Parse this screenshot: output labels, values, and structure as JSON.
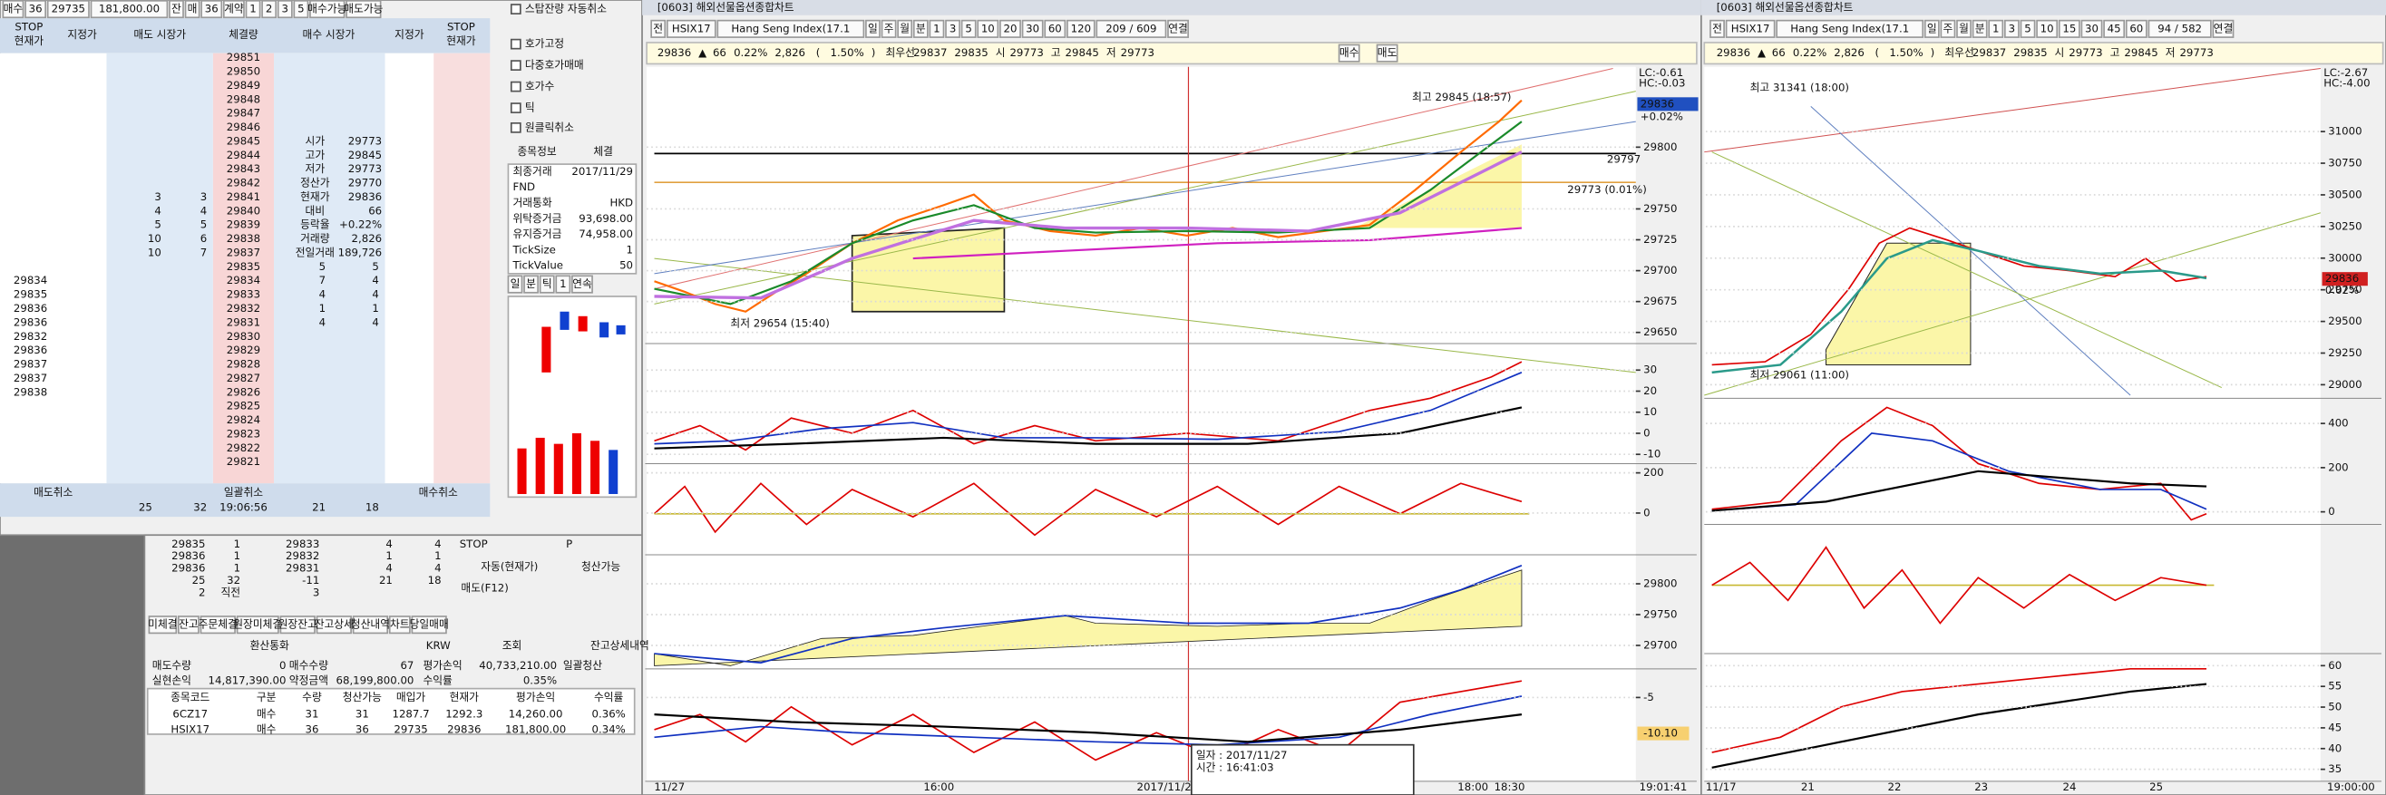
{
  "order_panel": {
    "toolbar": [
      "매수",
      "36",
      "29735",
      "181,800.00",
      "잔",
      "매",
      "36",
      "계약",
      "1",
      "2",
      "3",
      "5",
      "매수가능",
      "매도가능"
    ],
    "headers": [
      [
        "STOP",
        "현재가"
      ],
      [
        "지정가"
      ],
      [
        "매도 시장가"
      ],
      [
        "체결량"
      ],
      [
        "매수 시장가"
      ],
      [
        "지정가"
      ],
      [
        "STOP",
        "현재가"
      ]
    ],
    "prices": [
      29851,
      29850,
      29849,
      29848,
      29847,
      29846,
      29845,
      29844,
      29843,
      29842,
      29841,
      29840,
      29839,
      29838,
      29837,
      29835,
      29834,
      29833,
      29832,
      29831,
      29830,
      29829,
      29828,
      29827,
      29826,
      29825,
      29824,
      29823,
      29822,
      29821
    ],
    "ask_qty": [
      [
        3,
        3
      ],
      [
        4,
        4
      ],
      [
        5,
        5
      ],
      [
        10,
        6
      ],
      [
        10,
        7
      ]
    ],
    "bid_qty": [
      [
        5,
        5
      ],
      [
        7,
        4
      ],
      [
        4,
        4
      ],
      [
        1,
        1
      ],
      [
        4,
        4
      ]
    ],
    "quote": [
      [
        "시가",
        "29773"
      ],
      [
        "고가",
        "29845"
      ],
      [
        "저가",
        "29773"
      ],
      [
        "정산가",
        "29770"
      ],
      [
        "현재가",
        "29836"
      ],
      [
        "대비",
        "66"
      ],
      [
        "등락율",
        "+0.22%"
      ],
      [
        "거래량",
        "2,826"
      ],
      [
        "전일거래",
        "189,726"
      ]
    ],
    "stop_prices": [
      29834,
      29835,
      29836,
      29836,
      29832,
      29836,
      29837,
      29837,
      29838
    ],
    "footer": [
      "매도취소",
      "일괄취소",
      "매수취소"
    ],
    "totals": [
      "25",
      "32",
      "19:06:56",
      "21",
      "18"
    ]
  },
  "settings_panel": {
    "checks": [
      "스탑잔량 자동취소",
      "호가고정",
      "다중호가매매",
      "호가수",
      "틱",
      "원클릭취소"
    ],
    "tabs": [
      "종목정보",
      "체결"
    ],
    "info": [
      [
        "최종거래",
        "2017/11/29"
      ],
      [
        "FND"
      ],
      [
        "거래통화",
        "HKD"
      ],
      [
        "위탁증거금",
        "93,698.00"
      ],
      [
        "유지증거금",
        "74,958.00"
      ],
      [
        "TickSize",
        "1"
      ],
      [
        "TickValue",
        "50"
      ]
    ],
    "period_tabs": [
      "일",
      "분",
      "틱",
      "1",
      "연속"
    ]
  },
  "mini_book": [
    [
      "29835",
      "1",
      "29833",
      "4",
      "4"
    ],
    [
      "29836",
      "1",
      "29832",
      "1",
      "1"
    ],
    [
      "29836",
      "1",
      "29831",
      "4",
      "4"
    ],
    [
      "25",
      "32",
      "-11",
      "21",
      "18"
    ],
    [
      "2",
      "직전",
      "3"
    ]
  ],
  "stop_box": [
    "STOP",
    "P",
    "자동(현재가)",
    "청산가능",
    "매도(F12)"
  ],
  "account": {
    "tabs": [
      "미체결",
      "잔고",
      "주문체결",
      "원장미체결",
      "원장잔고",
      "잔고상세",
      "청산내역",
      "차트",
      "당일매매"
    ],
    "currency": [
      "환산통화",
      "KRW",
      "조회",
      "잔고상세내역"
    ],
    "summary": [
      [
        "매도수량",
        "0",
        "매수수량",
        "67",
        "평가손익",
        "40,733,210.00",
        "일괄청산"
      ],
      [
        "실현손익",
        "14,817,390.00",
        "약정금액",
        "68,199,800.00",
        "수익률",
        "0.35%"
      ]
    ],
    "columns": [
      "종목코드",
      "구분",
      "수량",
      "청산가능",
      "매입가",
      "현재가",
      "평가손익",
      "수익률"
    ],
    "rows": [
      [
        "6CZ17",
        "매수",
        "31",
        "31",
        "1287.7",
        "1292.3",
        "14,260.00",
        "0.36%"
      ],
      [
        "HSIX17",
        "매수",
        "36",
        "36",
        "29735",
        "29836",
        "181,800.00",
        "0.34%"
      ]
    ]
  },
  "chart_mid": {
    "title": "[0603] 해외선물옵션종합차트",
    "toolbar": [
      "전",
      "HSIX17",
      "Hang Seng Index(17.1",
      "일",
      "주",
      "월",
      "분",
      "1",
      "3",
      "5",
      "10",
      "20",
      "30",
      "60",
      "120",
      "209 / 609",
      "연결"
    ],
    "info": [
      "29836",
      "▲",
      "66",
      "0.22%",
      "2,826",
      "(",
      "1.50%",
      ")",
      "최우선",
      "29837",
      "29835",
      "시",
      "29773",
      "고",
      "29845",
      "저",
      "29773"
    ],
    "buttons": [
      "매수",
      "매도"
    ],
    "panels": [
      {
        "ylim": [
          29641,
          29865
        ],
        "yticks": [
          29800,
          29750,
          29725,
          29700,
          29675,
          29650
        ]
      },
      {
        "ylim": [
          -14.4,
          42.6
        ],
        "yticks": [
          30,
          20,
          10,
          0,
          -10
        ]
      },
      {
        "ylim": [
          -208,
          246
        ],
        "yticks": [
          200,
          0
        ]
      },
      {
        "ylim": [
          29662,
          29847
        ],
        "yticks": [
          29800,
          29750,
          29700
        ]
      },
      {
        "ylim": [
          -17,
          -0.9
        ],
        "yticks": [
          -5
        ]
      }
    ],
    "x_labels": [
      "11/27",
      "16:00",
      "2017/11/2",
      "18:00",
      "18:30",
      "19:01:41"
    ],
    "annotations": [
      "최고 29845 (18:57)",
      "최저 29654 (15:40)",
      "29797",
      "29773 (0.01%)"
    ],
    "corner": [
      "LC:-0.61",
      "HC:-0.03"
    ],
    "last_price": "29836",
    "last_change": "+0.02%",
    "indicator_value": "-10.10",
    "tooltip": [
      "일자 : 2017/11/27",
      "시간 : 16:41:03"
    ]
  },
  "chart_right": {
    "title": "[0603] 해외선물옵션종합차트",
    "toolbar": [
      "전",
      "HSIX17",
      "Hang Seng Index(17.1",
      "일",
      "주",
      "월",
      "분",
      "1",
      "3",
      "5",
      "10",
      "15",
      "30",
      "45",
      "60",
      "94 / 582",
      "연결"
    ],
    "info": [
      "29836",
      "▲",
      "66",
      "0.22%",
      "2,826",
      "(",
      "1.50%",
      ")",
      "최우선",
      "29837",
      "29835",
      "시",
      "29773",
      "고",
      "29845",
      "저",
      "29773"
    ],
    "panels": [
      {
        "ylim": [
          28893,
          31511
        ],
        "yticks": [
          31000,
          30750,
          30500,
          30250,
          30000,
          29750,
          29500,
          29250,
          29000
        ]
      },
      {
        "ylim": [
          -57,
          514
        ],
        "yticks": [
          400,
          200,
          0
        ]
      },
      {
        "ylim": [
          -1,
          1
        ],
        "yticks": []
      },
      {
        "ylim": [
          32.1,
          62.9
        ],
        "yticks": [
          60,
          55,
          50,
          45,
          40,
          35
        ]
      }
    ],
    "x_labels": [
      "11/17",
      "21",
      "22",
      "23",
      "24",
      "25",
      "19:00:00"
    ],
    "annotations": [
      "최고 31341 (18:00)",
      "최저 29061 (11:00)"
    ],
    "corner": [
      "LC:-2.67",
      "HC:-4.00"
    ],
    "last_price": "29836",
    "last_change": "0.02%"
  }
}
